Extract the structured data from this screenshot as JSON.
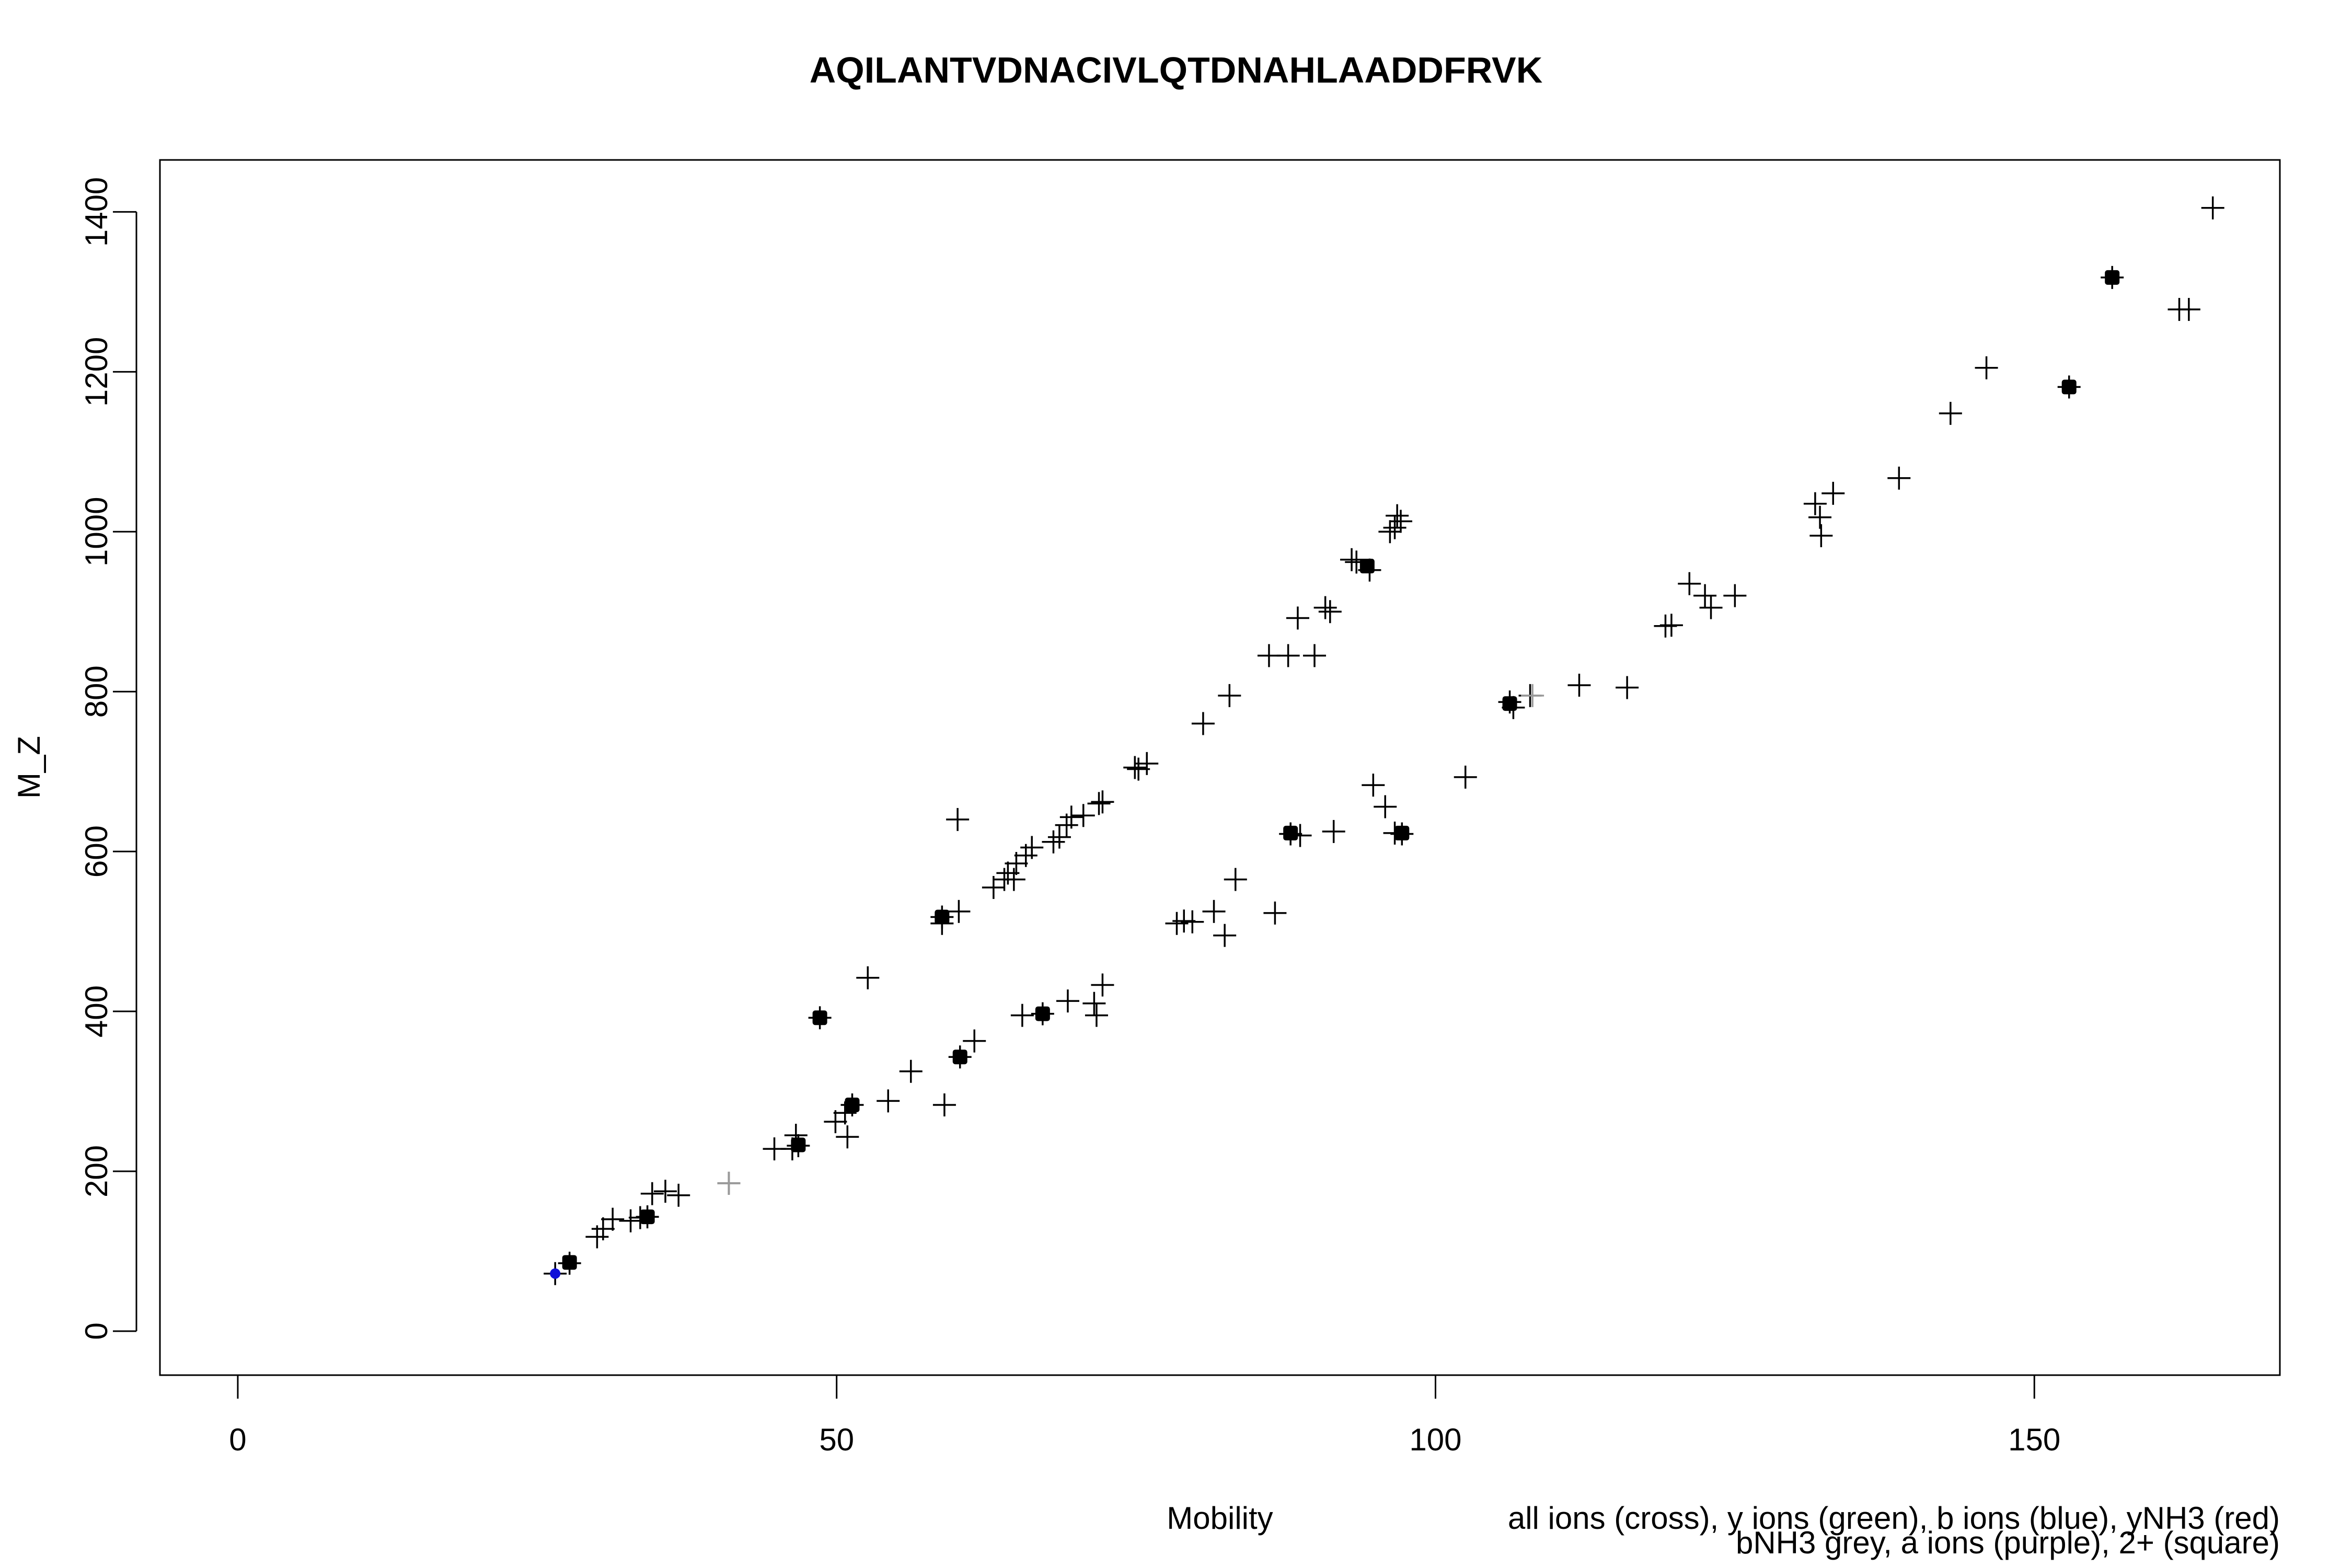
{
  "chart_data": {
    "type": "scatter",
    "title": "AQILANTVDNACIVLQTDNAHLAADDFRVK",
    "xlabel": "Mobility",
    "ylabel": "M_Z",
    "xlim": [
      -6.5,
      170.5
    ],
    "ylim": [
      -55,
      1465
    ],
    "xticks": [
      0,
      50,
      100,
      150
    ],
    "yticks": [
      0,
      200,
      400,
      600,
      800,
      1000,
      1200,
      1400
    ],
    "grid": false,
    "legend": {
      "position": "bottom-right",
      "lines": [
        "all ions (cross), y ions (green), b ions (blue), yNH3 (red)",
        "bNH3 grey, a ions (purple), 2+ (square)"
      ]
    },
    "series": [
      {
        "marker": "cross",
        "color": "#000000",
        "points": [
          [
            26.5,
            72
          ],
          [
            27.7,
            85
          ],
          [
            30,
            118
          ],
          [
            30.5,
            128
          ],
          [
            31.3,
            140
          ],
          [
            32.8,
            138
          ],
          [
            33.6,
            142
          ],
          [
            34.6,
            172
          ],
          [
            35.7,
            175
          ],
          [
            36.8,
            170
          ],
          [
            41,
            185
          ],
          [
            44.8,
            228
          ],
          [
            46.3,
            228
          ],
          [
            46.6,
            245
          ],
          [
            49.9,
            262
          ],
          [
            50.7,
            273
          ],
          [
            50.9,
            243
          ],
          [
            51.3,
            283
          ],
          [
            54.3,
            288
          ],
          [
            56.2,
            325
          ],
          [
            59,
            283
          ],
          [
            60.3,
            343
          ],
          [
            61.5,
            363
          ],
          [
            65.5,
            395
          ],
          [
            67.2,
            397
          ],
          [
            69.3,
            413
          ],
          [
            71.5,
            410
          ],
          [
            71.7,
            395
          ],
          [
            72.2,
            433
          ],
          [
            78.4,
            510
          ],
          [
            79,
            513
          ],
          [
            79.7,
            512
          ],
          [
            81.5,
            525
          ],
          [
            82.4,
            495
          ],
          [
            83.3,
            565
          ],
          [
            86.6,
            523
          ],
          [
            87.9,
            622
          ],
          [
            88.7,
            620
          ],
          [
            91.5,
            625
          ],
          [
            94.8,
            683
          ],
          [
            95.8,
            656
          ],
          [
            96.6,
            623
          ],
          [
            97.2,
            622
          ],
          [
            102.5,
            693
          ],
          [
            106.2,
            787
          ],
          [
            106.5,
            780
          ],
          [
            107.9,
            795
          ],
          [
            112,
            808
          ],
          [
            116,
            805
          ],
          [
            119.2,
            882
          ],
          [
            119.7,
            883
          ],
          [
            121.2,
            935
          ],
          [
            122.5,
            920
          ],
          [
            123,
            905
          ],
          [
            125,
            920
          ],
          [
            131.7,
            1035
          ],
          [
            132.1,
            1018
          ],
          [
            132.2,
            995
          ],
          [
            133.2,
            1048
          ],
          [
            138.7,
            1067
          ],
          [
            143,
            1148
          ],
          [
            146,
            1205
          ],
          [
            152.9,
            1181
          ],
          [
            156.5,
            1318
          ],
          [
            162.1,
            1278
          ],
          [
            162.9,
            1278
          ],
          [
            164.9,
            1405
          ],
          [
            34.2,
            143
          ],
          [
            46.8,
            232
          ],
          [
            48.6,
            392
          ],
          [
            52.6,
            442
          ],
          [
            58.8,
            518
          ],
          [
            58.8,
            510
          ],
          [
            60.2,
            525
          ],
          [
            60.1,
            640
          ],
          [
            63.1,
            555
          ],
          [
            64,
            565
          ],
          [
            64.3,
            573
          ],
          [
            64.8,
            565
          ],
          [
            65,
            585
          ],
          [
            65.8,
            595
          ],
          [
            66.3,
            605
          ],
          [
            68.1,
            612
          ],
          [
            68.6,
            618
          ],
          [
            69.2,
            633
          ],
          [
            69.6,
            643
          ],
          [
            70.6,
            645
          ],
          [
            71.9,
            660
          ],
          [
            72.2,
            662
          ],
          [
            74.9,
            705
          ],
          [
            75.2,
            703
          ],
          [
            75.9,
            710
          ],
          [
            80.6,
            760
          ],
          [
            82.8,
            795
          ],
          [
            86.1,
            845
          ],
          [
            87.7,
            845
          ],
          [
            88.5,
            892
          ],
          [
            89.9,
            845
          ],
          [
            90.8,
            905
          ],
          [
            91.2,
            900
          ],
          [
            93,
            965
          ],
          [
            93.4,
            962
          ],
          [
            94.5,
            952
          ],
          [
            96.2,
            1000
          ],
          [
            96.6,
            1005
          ],
          [
            96.8,
            1020
          ],
          [
            97.1,
            1013
          ]
        ]
      },
      {
        "marker": "square",
        "color": "#000000",
        "points": [
          [
            27.7,
            86
          ],
          [
            34.2,
            143
          ],
          [
            46.8,
            233
          ],
          [
            48.6,
            392
          ],
          [
            51.3,
            283
          ],
          [
            58.8,
            518
          ],
          [
            60.3,
            343
          ],
          [
            67.2,
            397
          ],
          [
            87.9,
            623
          ],
          [
            94.3,
            957
          ],
          [
            97.2,
            623
          ],
          [
            106.2,
            785
          ],
          [
            152.9,
            1181
          ],
          [
            156.5,
            1318
          ]
        ]
      },
      {
        "marker": "cross",
        "color": "#9a9a9a",
        "points": [
          [
            41,
            185
          ],
          [
            108.1,
            795
          ]
        ]
      },
      {
        "marker": "dot",
        "color": "#1010d8",
        "points": [
          [
            26.5,
            72
          ]
        ]
      }
    ]
  }
}
